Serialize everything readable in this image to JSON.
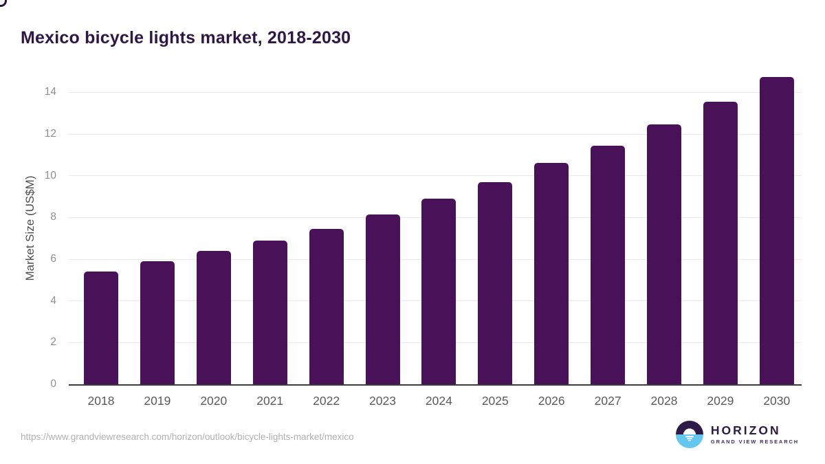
{
  "title": "Mexico bicycle lights market, 2018-2030",
  "source_url": "https://www.grandviewresearch.com/horizon/outlook/bicycle-lights-market/mexico",
  "logo": {
    "name": "HORIZON",
    "subtitle": "GRAND VIEW RESEARCH",
    "icon": "horizon-sun-over-water-icon"
  },
  "colors": {
    "bar": "#481158",
    "title": "#2e1745",
    "gridline": "#e9e9e9",
    "axis_line": "#3c3c3c",
    "tick_label": "#8e8e8e",
    "x_label": "#5a5a5a",
    "y_axis_title": "#4e4e4e",
    "url_text": "#b0b0b0",
    "logo_purple": "#2e1a47",
    "logo_blue": "#64c7f0"
  },
  "chart_data": {
    "type": "bar",
    "title": "Mexico bicycle lights market, 2018-2030",
    "categories": [
      "2018",
      "2019",
      "2020",
      "2021",
      "2022",
      "2023",
      "2024",
      "2025",
      "2026",
      "2027",
      "2028",
      "2029",
      "2030"
    ],
    "values": [
      5.4,
      5.9,
      6.4,
      6.9,
      7.45,
      8.15,
      8.9,
      9.7,
      10.6,
      11.45,
      12.45,
      13.55,
      14.75
    ],
    "xlabel": "",
    "ylabel": "Market Size (US$M)",
    "ylim": [
      0,
      15
    ],
    "yticks": [
      0,
      2,
      4,
      6,
      8,
      10,
      12,
      14
    ],
    "grid": true,
    "legend_position": "none",
    "bar_color": "#481158"
  }
}
